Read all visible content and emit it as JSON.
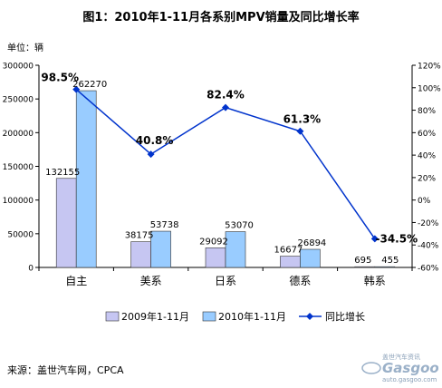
{
  "title": "图1：2010年1-11月各系别MPV销量及同比增长率",
  "unit_label": "单位：辆",
  "source": "来源：盖世汽车网，CPCA",
  "watermark": {
    "line1": "盖世汽车资讯",
    "line2": "Gasgoo",
    "line3": "auto.gasgoo.com"
  },
  "colors": {
    "series2009": "#c6c6f2",
    "series2010": "#99ccff",
    "growth": "#0033cc",
    "bar_stroke": "#333333"
  },
  "chart_data": {
    "type": "bar",
    "categories": [
      "自主",
      "美系",
      "日系",
      "德系",
      "韩系"
    ],
    "series": [
      {
        "name": "2009年1-11月",
        "kind": "bar",
        "axis": "left",
        "values": [
          132155,
          38175,
          29092,
          16677,
          695
        ]
      },
      {
        "name": "2010年1-11月",
        "kind": "bar",
        "axis": "left",
        "values": [
          262270,
          53738,
          53070,
          26894,
          455
        ]
      },
      {
        "name": "同比增长",
        "kind": "line",
        "axis": "right",
        "values": [
          98.5,
          40.8,
          82.4,
          61.3,
          -34.5
        ],
        "labels": [
          "98.5%",
          "40.8%",
          "82.4%",
          "61.3%",
          "-34.5%"
        ]
      }
    ],
    "ylim": [
      0,
      300000
    ],
    "y2lim": [
      -60,
      120
    ],
    "yticks": [
      "0",
      "50000",
      "100000",
      "150000",
      "200000",
      "250000",
      "300000"
    ],
    "y2ticks": [
      "-60%",
      "-40%",
      "-20%",
      "0%",
      "20%",
      "40%",
      "60%",
      "80%",
      "100%",
      "120%"
    ],
    "grid": false,
    "legend": "bottom"
  }
}
